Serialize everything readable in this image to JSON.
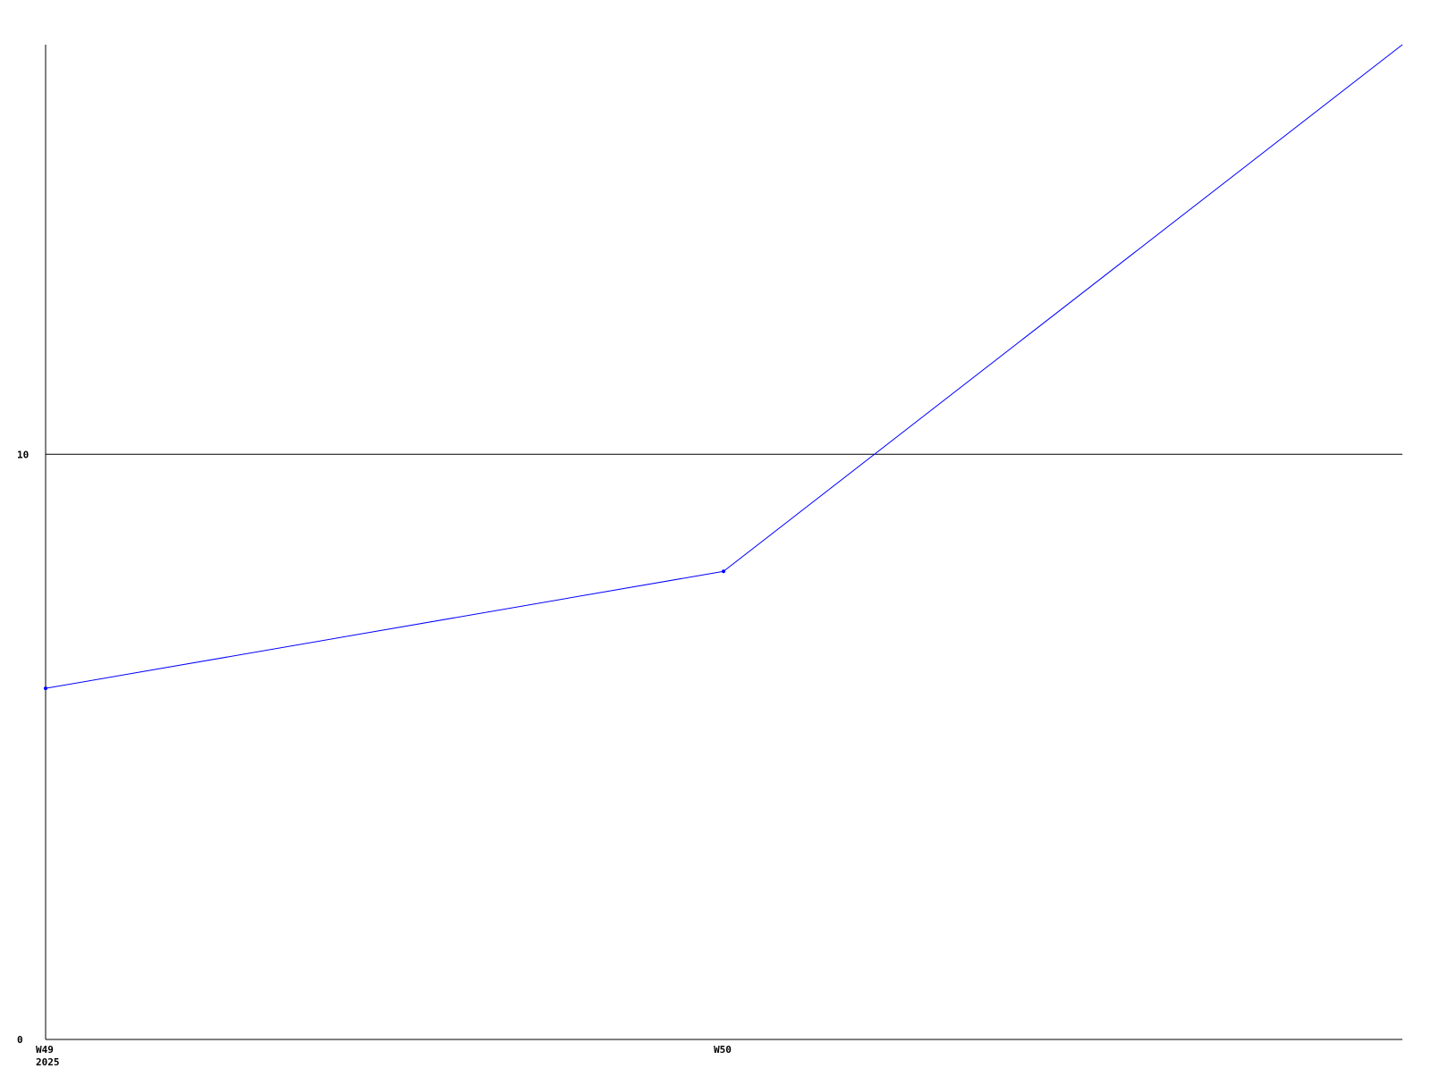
{
  "chart_data": {
    "type": "line",
    "title": "",
    "xlabel": "",
    "ylabel": "",
    "x_categories": [
      "W49",
      "W50",
      ""
    ],
    "x_tick_labels": [
      {
        "text": "W49",
        "subtext": "2025"
      },
      {
        "text": "W50",
        "subtext": ""
      }
    ],
    "series": [
      {
        "values": [
          6,
          8,
          17
        ],
        "color": "#0000ff"
      }
    ],
    "ylim": [
      0,
      17
    ],
    "y_ticks": [
      0,
      10
    ],
    "y_tick_labels": [
      "0",
      "10"
    ],
    "grid": {
      "horizontal_at": [
        10
      ],
      "vertical": false
    },
    "legend": "none",
    "colors": {
      "axis": "#000000",
      "grid": "#000000",
      "background": "#ffffff"
    }
  }
}
